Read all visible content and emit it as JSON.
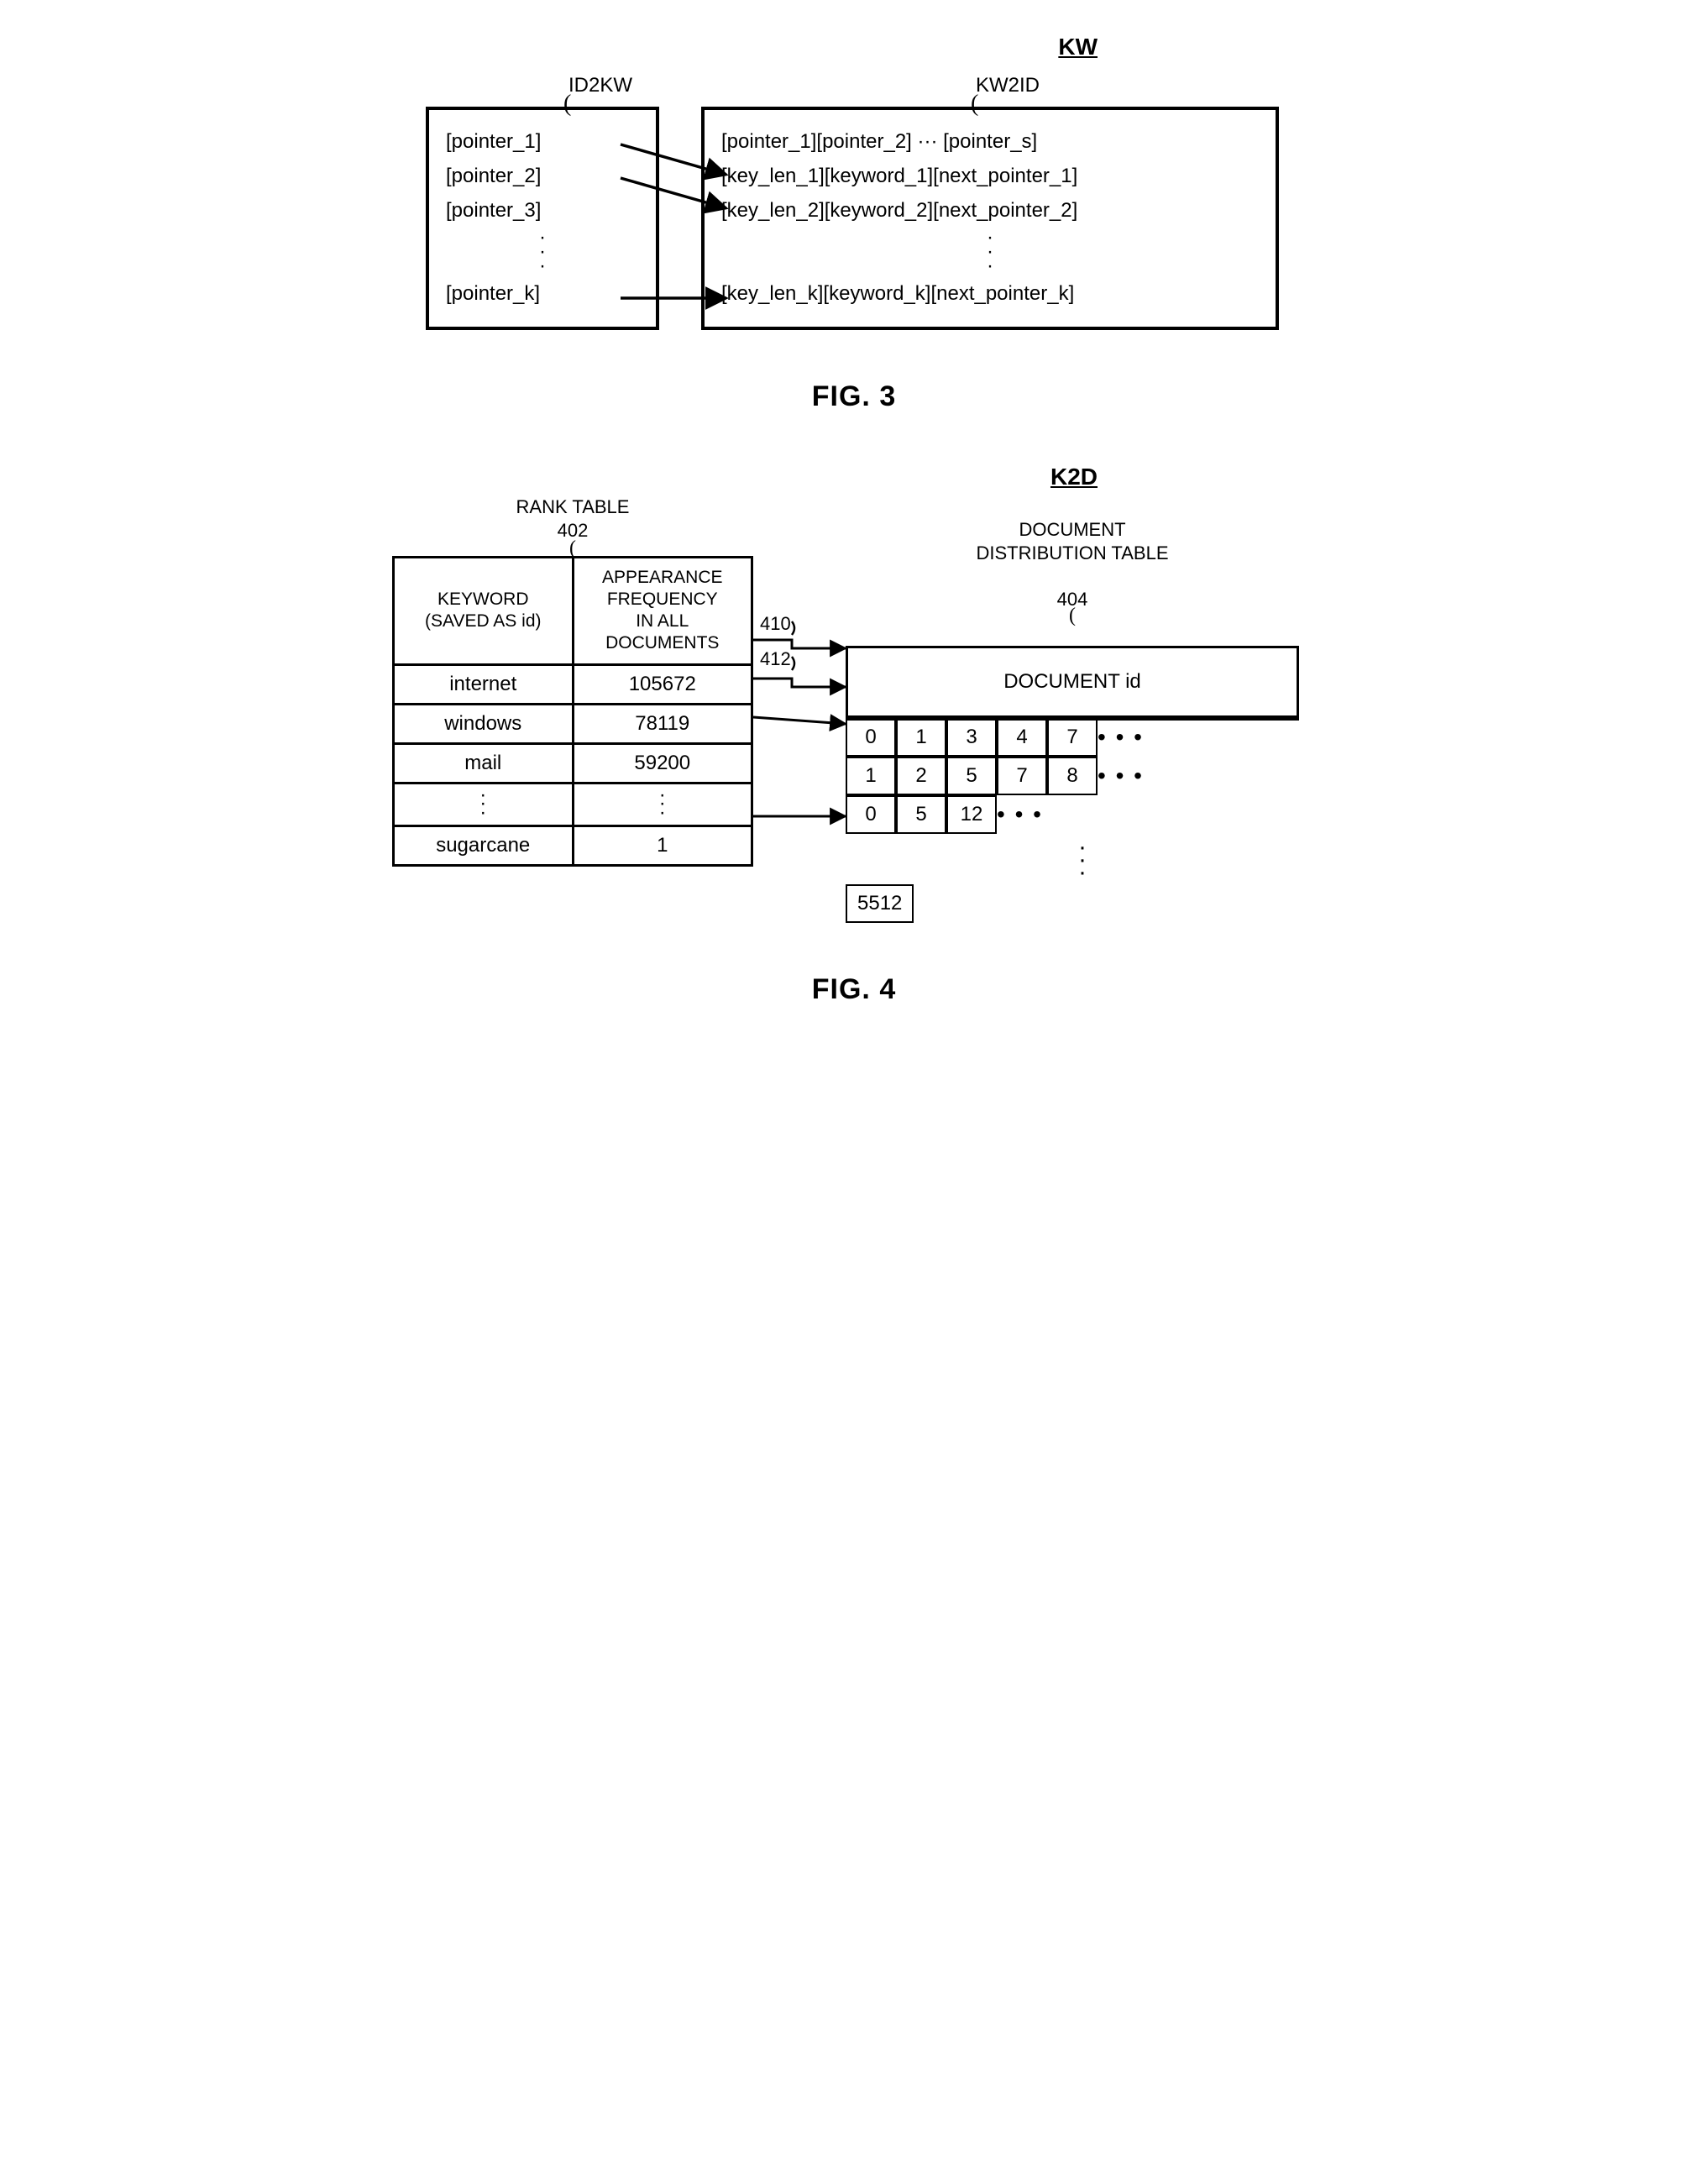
{
  "fig3": {
    "title_main": "KW",
    "left_label": "ID2KW",
    "right_label": "KW2ID",
    "left_items": [
      "[pointer_1]",
      "[pointer_2]",
      "[pointer_3]"
    ],
    "left_last": "[pointer_k]",
    "right_header": "[pointer_1][pointer_2] ··· [pointer_s]",
    "right_items": [
      "[key_len_1][keyword_1][next_pointer_1]",
      "[key_len_2][keyword_2][next_pointer_2]"
    ],
    "right_last": "[key_len_k][keyword_k][next_pointer_k]",
    "caption": "FIG. 3"
  },
  "fig4": {
    "title_main": "K2D",
    "rank_label": "RANK TABLE",
    "rank_ref": "402",
    "dist_label": "DOCUMENT\nDISTRIBUTION TABLE",
    "dist_ref": "404",
    "arrow_refs": [
      "410",
      "412"
    ],
    "rank_cols": [
      "KEYWORD\n(SAVED AS id)",
      "APPEARANCE\nFREQUENCY\nIN ALL\nDOCUMENTS"
    ],
    "dist_hdr": "DOCUMENT id",
    "rows": [
      {
        "kw": "internet",
        "freq": "105672",
        "docs": [
          "0",
          "1",
          "3",
          "4",
          "7"
        ],
        "ell": true
      },
      {
        "kw": "windows",
        "freq": "78119",
        "docs": [
          "1",
          "2",
          "5",
          "7",
          "8"
        ],
        "ell": true
      },
      {
        "kw": "mail",
        "freq": "59200",
        "docs": [
          "0",
          "5",
          "12"
        ],
        "ell": true
      }
    ],
    "last_row": {
      "kw": "sugarcane",
      "freq": "1",
      "docs": [
        "5512"
      ],
      "ell": false
    },
    "caption": "FIG. 4"
  }
}
